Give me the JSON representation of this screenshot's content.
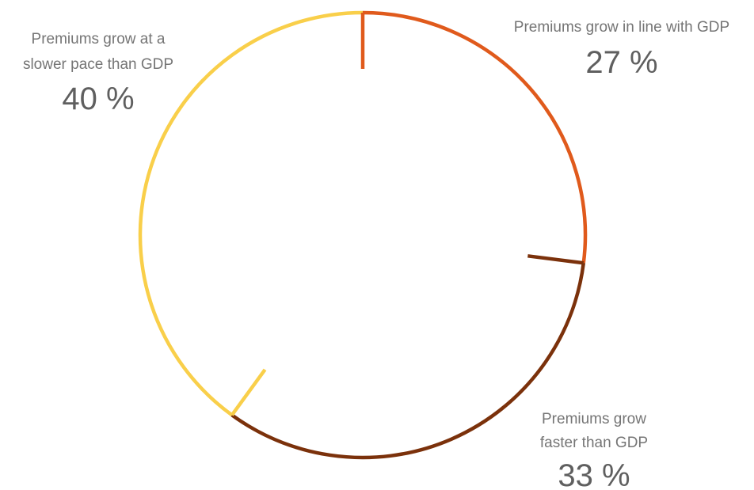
{
  "chart_data": {
    "type": "pie",
    "style": "ring",
    "title": "",
    "categories": [
      "Premiums grow in line with GDP",
      "Premiums grow faster than GDP",
      "Premiums grow at a slower pace than GDP"
    ],
    "values": [
      27,
      33,
      40
    ],
    "unit": "%",
    "colors": [
      "#e05a1c",
      "#7b310b",
      "#f9cf4a"
    ],
    "labels": [
      {
        "lines": [
          "Premiums grow in line with GDP"
        ],
        "value": "27 %"
      },
      {
        "lines": [
          "Premiums grow",
          "faster than GDP"
        ],
        "value": "33 %"
      },
      {
        "lines": [
          "Premiums grow at a",
          "slower pace than GDP"
        ],
        "value": "40 %"
      }
    ]
  }
}
